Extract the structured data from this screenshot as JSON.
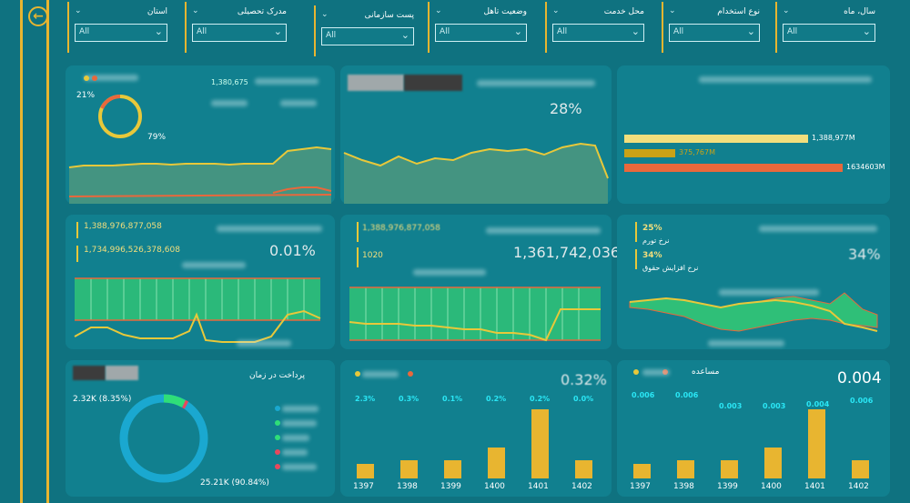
{
  "filters": [
    {
      "title": "سال، ماه",
      "value": "All"
    },
    {
      "title": "نوع استخدام",
      "value": "All"
    },
    {
      "title": "محل خدمت",
      "value": "All"
    },
    {
      "title": "وضعیت تاهل",
      "value": "All"
    },
    {
      "title": "پست سازمانی",
      "value": "All"
    },
    {
      "title": "مدرک تحصیلی",
      "value": "All"
    },
    {
      "title": "استان",
      "value": "All"
    }
  ],
  "card1": {
    "donut_small_pct": "21%",
    "donut_large_pct": "79%",
    "kpi_value": "1,380,675"
  },
  "card2": {
    "kpi": "28%"
  },
  "card3": {
    "bars": [
      {
        "label": "1,388,977M",
        "value": 1388977,
        "color": "#f2de7c"
      },
      {
        "label": "375,767M",
        "value": 375767,
        "color": "#c9a216"
      },
      {
        "label": "1634603M",
        "value": 1634603,
        "color": "#e8683c"
      }
    ]
  },
  "card4": {
    "v1": "1,388,976,877,058",
    "v2": "1,734,996,526,378,608",
    "kpi": "0.01%"
  },
  "card5": {
    "v1": "1,388,976,877,058",
    "v2": "1020",
    "kpi": "1,361,742,036"
  },
  "card6": {
    "p1": "25%",
    "l1": "نرخ تورم",
    "p2": "34%",
    "l2": "نرخ افزایش حقوق",
    "kpi": "34%"
  },
  "card7": {
    "title": "پرداخت در زمان",
    "label_small": "2.32K (8.35%)",
    "label_large": "25.21K (90.84%)"
  },
  "chart_data": [
    {
      "type": "bar",
      "categories": [
        "1397",
        "1398",
        "1399",
        "1400",
        "1401",
        "1402"
      ],
      "values": [
        2.3,
        0.3,
        0.1,
        0.2,
        0.2,
        0.0
      ],
      "labels": [
        "2.3%",
        "0.3%",
        "0.1%",
        "0.2%",
        "0.2%",
        "0.0%"
      ],
      "heights": [
        16,
        20,
        20,
        34,
        76,
        20
      ],
      "kpi": "0.32%"
    },
    {
      "type": "bar",
      "categories": [
        "1397",
        "1398",
        "1399",
        "1400",
        "1401",
        "1402"
      ],
      "values": [
        0.006,
        0.006,
        0.003,
        0.003,
        0.004,
        0.006
      ],
      "labels": [
        "0.006",
        "0.006",
        "0.003",
        "0.003",
        "0.004",
        "0.006"
      ],
      "heights": [
        16,
        20,
        20,
        34,
        76,
        20
      ],
      "kpi": "0.004",
      "legend": "مساعده"
    }
  ]
}
